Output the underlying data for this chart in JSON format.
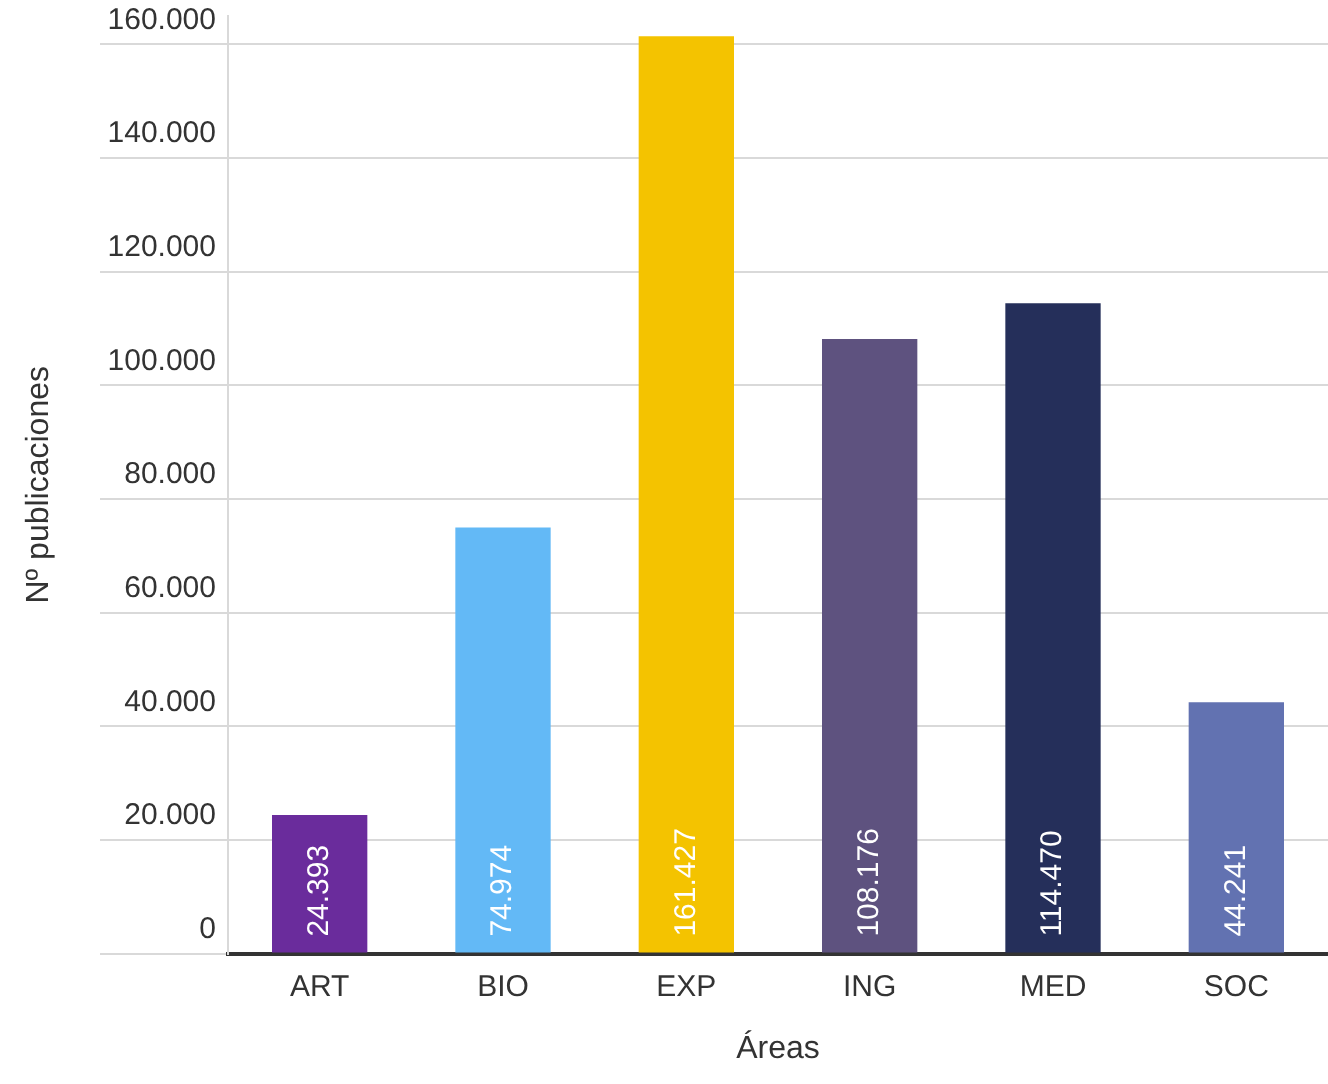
{
  "chart_data": {
    "type": "bar",
    "xlabel": "Áreas",
    "ylabel": "Nº publicaciones",
    "categories": [
      "ART",
      "BIO",
      "EXP",
      "ING",
      "MED",
      "SOC"
    ],
    "values": [
      24393,
      74974,
      161427,
      108176,
      114470,
      44241
    ],
    "colors": [
      "#6a2c9c",
      "#63b9f6",
      "#f4c300",
      "#5e527f",
      "#252f5a",
      "#6272b1"
    ],
    "value_labels": [
      "24.393",
      "74.974",
      "161.427",
      "108.176",
      "114.470",
      "44.241"
    ],
    "ylim": [
      0,
      165000
    ],
    "yticks": [
      {
        "value": 0,
        "label": "0"
      },
      {
        "value": 20000,
        "label": "20.000"
      },
      {
        "value": 40000,
        "label": "40.000"
      },
      {
        "value": 60000,
        "label": "60.000"
      },
      {
        "value": 80000,
        "label": "80.000"
      },
      {
        "value": 100000,
        "label": "100.000"
      },
      {
        "value": 120000,
        "label": "120.000"
      },
      {
        "value": 140000,
        "label": "140.000"
      },
      {
        "value": 160000,
        "label": "160.000"
      }
    ],
    "grid": "y",
    "legend": false
  }
}
